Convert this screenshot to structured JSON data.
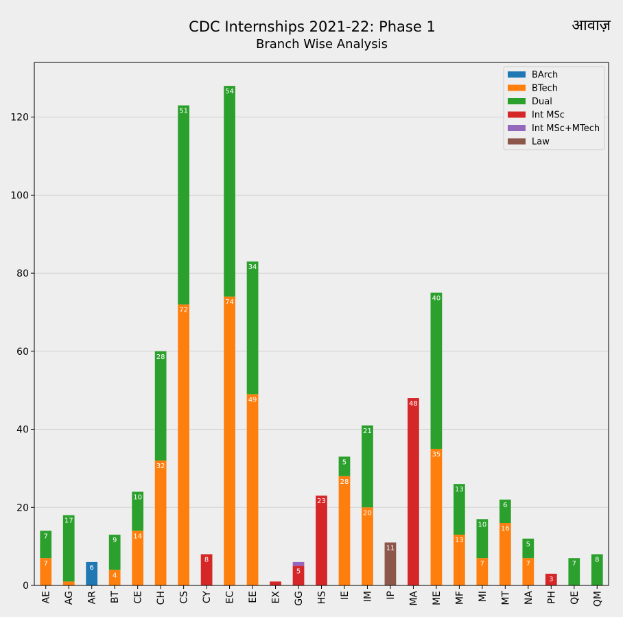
{
  "chart_data": {
    "type": "bar",
    "stacked": true,
    "title": "CDC Internships 2021-22: Phase 1",
    "subtitle": "Branch Wise Analysis",
    "brand": "आवाज़",
    "ylim": [
      0,
      134
    ],
    "yticks": [
      0,
      20,
      40,
      60,
      80,
      100,
      120
    ],
    "grid": true,
    "legend_position": "top-right",
    "categories": [
      "AE",
      "AG",
      "AR",
      "BT",
      "CE",
      "CH",
      "CS",
      "CY",
      "EC",
      "EE",
      "EX",
      "GG",
      "HS",
      "IE",
      "IM",
      "IP",
      "MA",
      "ME",
      "MF",
      "MI",
      "MT",
      "NA",
      "PH",
      "QE",
      "QM"
    ],
    "series": [
      {
        "name": "BArch",
        "color": "#1f77b4",
        "values": [
          0,
          0,
          6,
          0,
          0,
          0,
          0,
          0,
          0,
          0,
          0,
          0,
          0,
          0,
          0,
          0,
          0,
          0,
          0,
          0,
          0,
          0,
          0,
          0,
          0
        ],
        "labels": [
          null,
          null,
          "6",
          null,
          null,
          null,
          null,
          null,
          null,
          null,
          null,
          null,
          null,
          null,
          null,
          null,
          null,
          null,
          null,
          null,
          null,
          null,
          null,
          null,
          null
        ]
      },
      {
        "name": "BTech",
        "color": "#ff7f0e",
        "values": [
          7,
          1,
          0,
          4,
          14,
          32,
          72,
          0,
          74,
          49,
          0,
          0,
          0,
          28,
          20,
          0,
          0,
          35,
          13,
          7,
          16,
          7,
          0,
          0,
          0
        ],
        "labels": [
          "7",
          null,
          null,
          "4",
          "14",
          "32",
          "72",
          null,
          "74",
          "49",
          null,
          null,
          null,
          "28",
          "20",
          null,
          null,
          "35",
          "13",
          "7",
          "16",
          "7",
          null,
          null,
          null
        ]
      },
      {
        "name": "Dual",
        "color": "#2ca02c",
        "values": [
          7,
          17,
          0,
          9,
          10,
          28,
          51,
          0,
          54,
          34,
          0,
          0,
          0,
          5,
          21,
          0,
          0,
          40,
          13,
          10,
          6,
          5,
          0,
          7,
          8
        ],
        "labels": [
          "7",
          "17",
          null,
          "9",
          "10",
          "28",
          "51",
          null,
          "54",
          "34",
          null,
          null,
          null,
          "5",
          "21",
          null,
          null,
          "40",
          "13",
          "10",
          "6",
          "5",
          null,
          "7",
          "8"
        ]
      },
      {
        "name": "Int MSc",
        "color": "#d62728",
        "values": [
          0,
          0,
          0,
          0,
          0,
          0,
          0,
          8,
          0,
          0,
          1,
          5,
          23,
          0,
          0,
          0,
          48,
          0,
          0,
          0,
          0,
          0,
          3,
          0,
          0
        ],
        "labels": [
          null,
          null,
          null,
          null,
          null,
          null,
          null,
          "8",
          null,
          null,
          null,
          "5",
          "23",
          null,
          null,
          null,
          "48",
          null,
          null,
          null,
          null,
          null,
          "3",
          null,
          null
        ]
      },
      {
        "name": "Int MSc+MTech",
        "color": "#9467bd",
        "values": [
          0,
          0,
          0,
          0,
          0,
          0,
          0,
          0,
          0,
          0,
          0,
          1,
          0,
          0,
          0,
          0,
          0,
          0,
          0,
          0,
          0,
          0,
          0,
          0,
          0
        ],
        "labels": [
          null,
          null,
          null,
          null,
          null,
          null,
          null,
          null,
          null,
          null,
          null,
          null,
          null,
          null,
          null,
          null,
          null,
          null,
          null,
          null,
          null,
          null,
          null,
          null,
          null
        ]
      },
      {
        "name": "Law",
        "color": "#8c564b",
        "values": [
          0,
          0,
          0,
          0,
          0,
          0,
          0,
          0,
          0,
          0,
          0,
          0,
          0,
          0,
          0,
          11,
          0,
          0,
          0,
          0,
          0,
          0,
          0,
          0,
          0
        ],
        "labels": [
          null,
          null,
          null,
          null,
          null,
          null,
          null,
          null,
          null,
          null,
          null,
          null,
          null,
          null,
          null,
          "11",
          null,
          null,
          null,
          null,
          null,
          null,
          null,
          null,
          null
        ]
      }
    ]
  }
}
